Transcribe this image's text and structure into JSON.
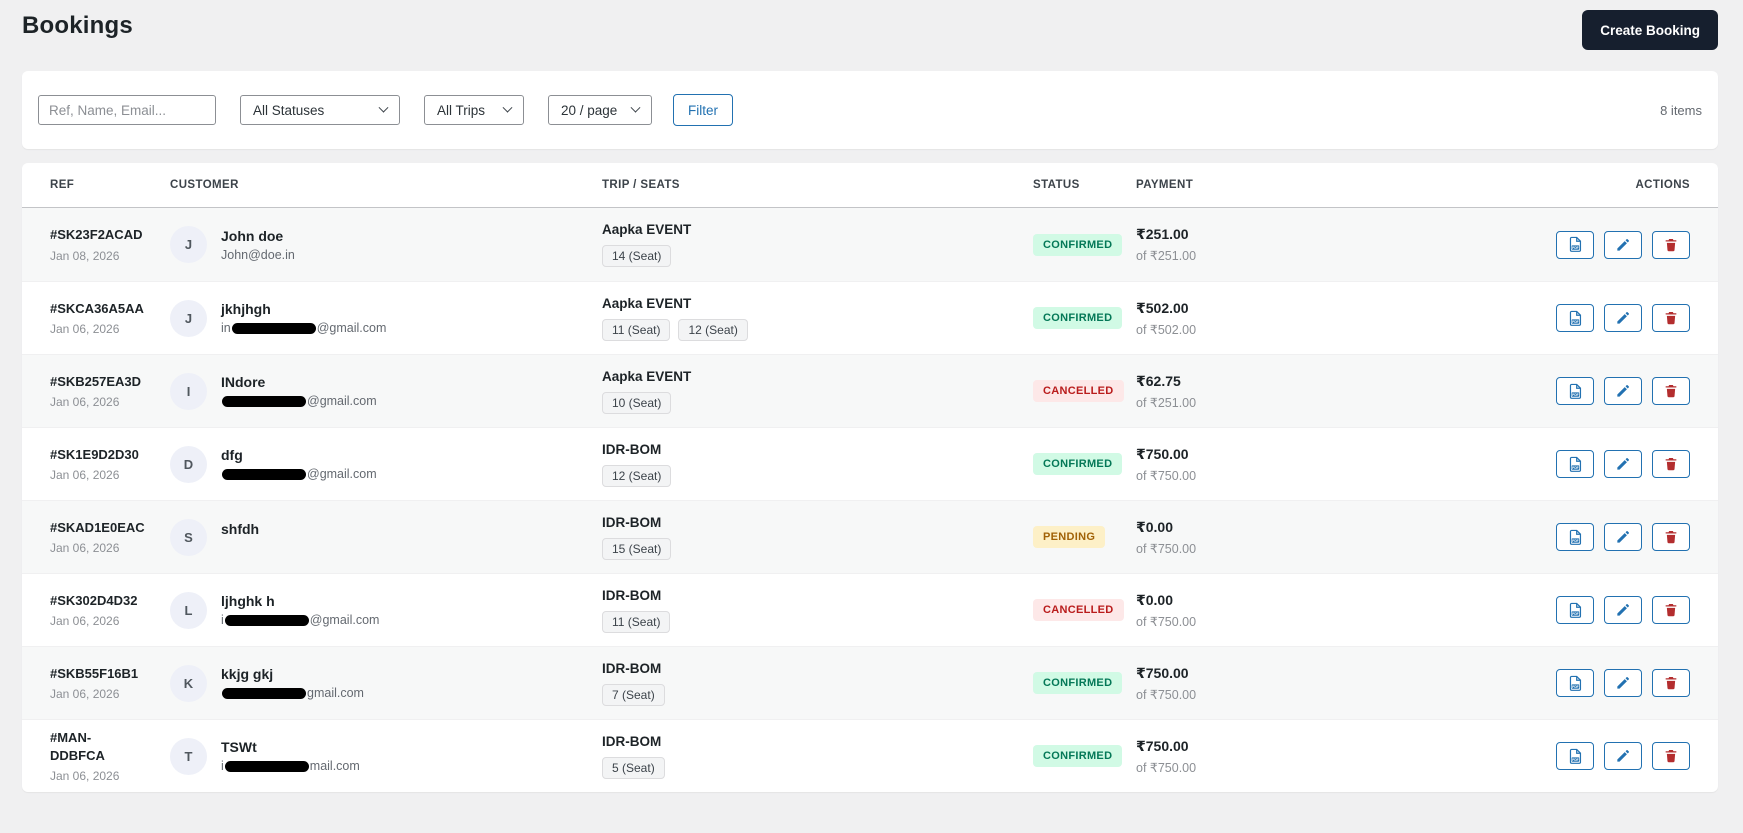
{
  "page": {
    "title": "Bookings",
    "create_button": "Create Booking",
    "items_count": "8 items"
  },
  "filters": {
    "search_placeholder": "Ref, Name, Email...",
    "status_select": "All Statuses",
    "trips_select": "All Trips",
    "per_page_select": "20 / page",
    "filter_button": "Filter"
  },
  "table": {
    "headers": [
      "REF",
      "CUSTOMER",
      "TRIP / SEATS",
      "STATUS",
      "PAYMENT",
      "ACTIONS"
    ],
    "rows": [
      {
        "ref": "#SK23F2ACAD",
        "date": "Jan 08, 2026",
        "initial": "J",
        "name": "John doe",
        "email": {
          "prefix": "John@doe.in",
          "redacted": false,
          "suffix": ""
        },
        "trip": "Aapka EVENT",
        "seats": [
          "14 (Seat)"
        ],
        "status": "CONFIRMED",
        "status_type": "confirmed",
        "amount": "₹251.00",
        "of": "of ₹251.00"
      },
      {
        "ref": "#SKCA36A5AA",
        "date": "Jan 06, 2026",
        "initial": "J",
        "name": "jkhjhgh",
        "email": {
          "prefix": "in",
          "redacted": true,
          "suffix": "@gmail.com"
        },
        "trip": "Aapka EVENT",
        "seats": [
          "11 (Seat)",
          "12 (Seat)"
        ],
        "status": "CONFIRMED",
        "status_type": "confirmed",
        "amount": "₹502.00",
        "of": "of ₹502.00"
      },
      {
        "ref": "#SKB257EA3D",
        "date": "Jan 06, 2026",
        "initial": "I",
        "name": "INdore",
        "email": {
          "prefix": "",
          "redacted": true,
          "suffix": "@gmail.com"
        },
        "trip": "Aapka EVENT",
        "seats": [
          "10 (Seat)"
        ],
        "status": "CANCELLED",
        "status_type": "cancelled",
        "amount": "₹62.75",
        "of": "of ₹251.00"
      },
      {
        "ref": "#SK1E9D2D30",
        "date": "Jan 06, 2026",
        "initial": "D",
        "name": "dfg",
        "email": {
          "prefix": "",
          "redacted": true,
          "suffix": "@gmail.com"
        },
        "trip": "IDR-BOM",
        "seats": [
          "12 (Seat)"
        ],
        "status": "CONFIRMED",
        "status_type": "confirmed",
        "amount": "₹750.00",
        "of": "of ₹750.00"
      },
      {
        "ref": "#SKAD1E0EAC",
        "date": "Jan 06, 2026",
        "initial": "S",
        "name": "shfdh",
        "email": null,
        "trip": "IDR-BOM",
        "seats": [
          "15 (Seat)"
        ],
        "status": "PENDING",
        "status_type": "pending",
        "amount": "₹0.00",
        "of": "of ₹750.00"
      },
      {
        "ref": "#SK302D4D32",
        "date": "Jan 06, 2026",
        "initial": "L",
        "name": "ljhghk h",
        "email": {
          "prefix": "i",
          "redacted": true,
          "suffix": "@gmail.com"
        },
        "trip": "IDR-BOM",
        "seats": [
          "11 (Seat)"
        ],
        "status": "CANCELLED",
        "status_type": "cancelled",
        "amount": "₹0.00",
        "of": "of ₹750.00"
      },
      {
        "ref": "#SKB55F16B1",
        "date": "Jan 06, 2026",
        "initial": "K",
        "name": "kkjg gkj",
        "email": {
          "prefix": "",
          "redacted": true,
          "suffix": "gmail.com"
        },
        "trip": "IDR-BOM",
        "seats": [
          "7 (Seat)"
        ],
        "status": "CONFIRMED",
        "status_type": "confirmed",
        "amount": "₹750.00",
        "of": "of ₹750.00"
      },
      {
        "ref": "#MAN-DDBFCA",
        "date": "Jan 06, 2026",
        "initial": "T",
        "name": "TSWt",
        "email": {
          "prefix": "i",
          "redacted": true,
          "suffix": "mail.com"
        },
        "trip": "IDR-BOM",
        "seats": [
          "5 (Seat)"
        ],
        "status": "CONFIRMED",
        "status_type": "confirmed",
        "amount": "₹750.00",
        "of": "of ₹750.00"
      }
    ]
  },
  "colors": {
    "accent_blue": "#2271b1",
    "dark_button": "#161f2e",
    "delete_red": "#b32d2e",
    "confirmed_bg": "#d1fae5",
    "confirmed_text": "#047857",
    "cancelled_bg": "#fde8e8",
    "cancelled_text": "#b91c1c",
    "pending_bg": "#fdf0c7",
    "pending_text": "#a16207"
  }
}
